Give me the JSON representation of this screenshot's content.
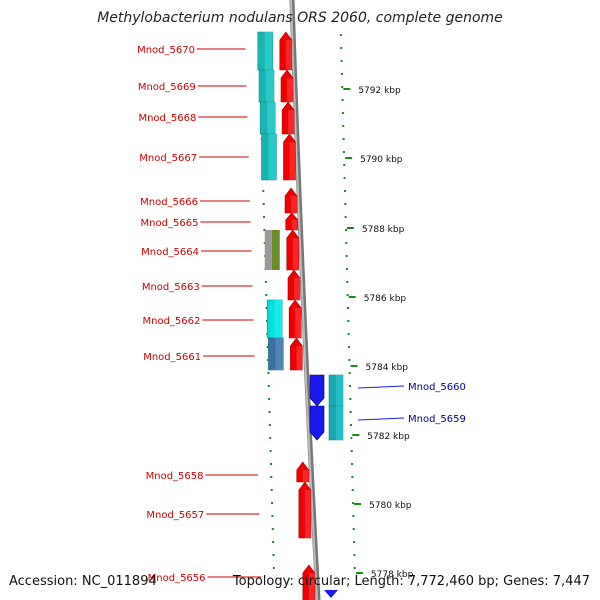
{
  "title": "Methylobacterium nodulans ORS 2060, complete genome",
  "accession": "Accession: NC_011894",
  "topology": "Topology: circular; Length: 7,772,460 bp; Genes: 7,447",
  "colors": {
    "forward_gene": "#ee0000",
    "reverse_gene": "#1a1aee",
    "left_label": "#cc0000",
    "right_label": "#000099",
    "tick": "#1a8a1a",
    "backbone": "#888888"
  },
  "scale": [
    {
      "label": "5792 kbp"
    },
    {
      "label": "5790 kbp"
    },
    {
      "label": "5788 kbp"
    },
    {
      "label": "5786 kbp"
    },
    {
      "label": "5784 kbp"
    },
    {
      "label": "5782 kbp"
    },
    {
      "label": "5780 kbp"
    },
    {
      "label": "5778 kbp"
    }
  ],
  "left_genes": [
    {
      "name": "Mnod_5670",
      "cog": "cyan"
    },
    {
      "name": "Mnod_5669",
      "cog": "cyan"
    },
    {
      "name": "Mnod_5668",
      "cog": "cyan"
    },
    {
      "name": "Mnod_5667",
      "cog": "cyan"
    },
    {
      "name": "Mnod_5666",
      "cog": "none"
    },
    {
      "name": "Mnod_5665",
      "cog": "none"
    },
    {
      "name": "Mnod_5664",
      "cog": "gray-olive"
    },
    {
      "name": "Mnod_5663",
      "cog": "none"
    },
    {
      "name": "Mnod_5662",
      "cog": "aqua"
    },
    {
      "name": "Mnod_5661",
      "cog": "steelblue"
    },
    {
      "name": "Mnod_5658",
      "cog": "none"
    },
    {
      "name": "Mnod_5657",
      "cog": "none"
    },
    {
      "name": "Mnod_5656",
      "cog": "none"
    }
  ],
  "right_genes": [
    {
      "name": "Mnod_5660",
      "cog": "teal"
    },
    {
      "name": "Mnod_5659",
      "cog": "teal"
    }
  ]
}
